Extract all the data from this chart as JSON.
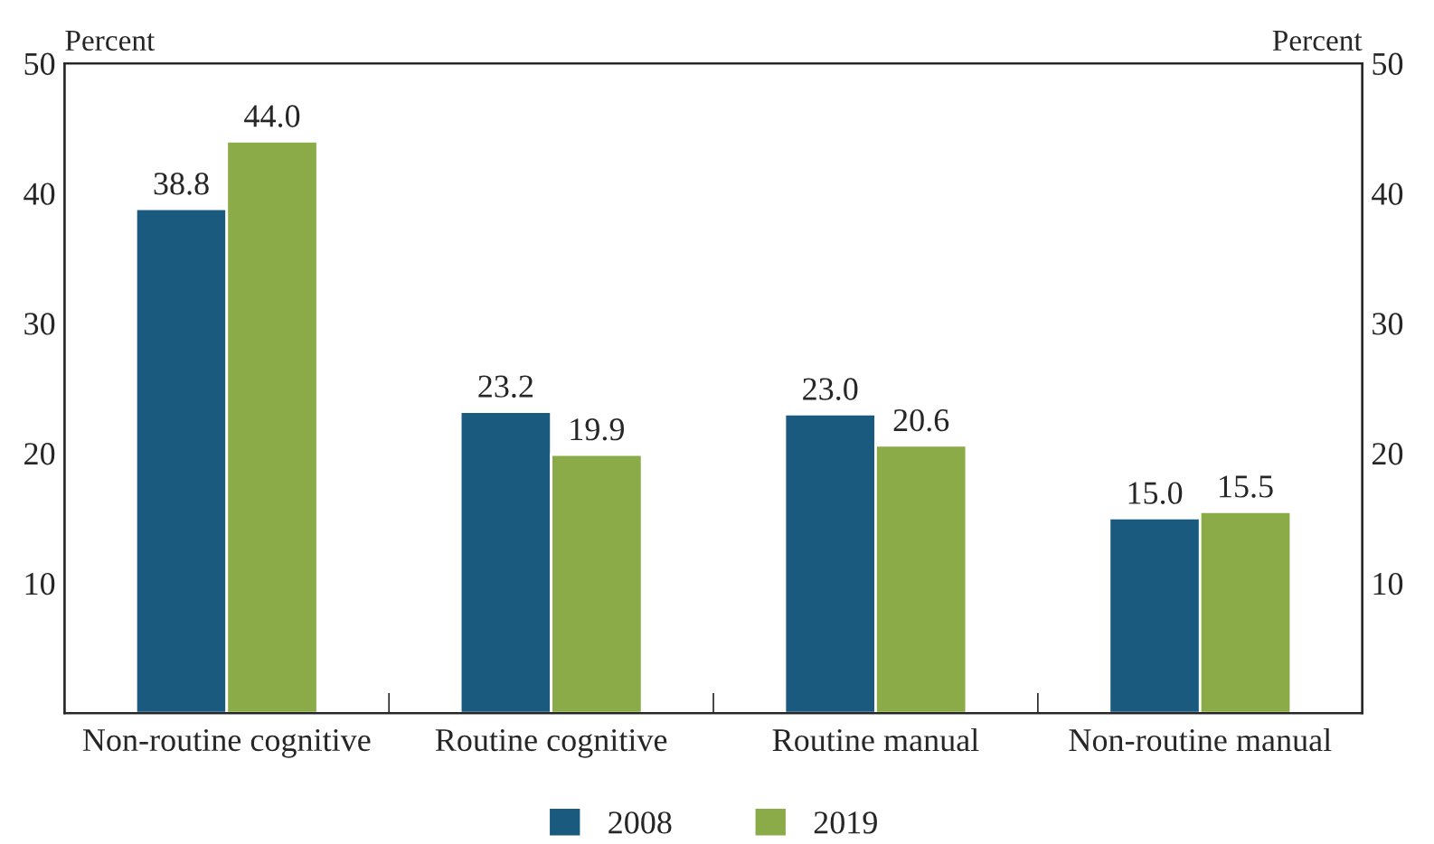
{
  "chart_data": {
    "type": "bar",
    "ylabel": "Percent",
    "y2label": "Percent",
    "categories": [
      "Non-routine cognitive",
      "Routine cognitive",
      "Routine manual",
      "Non-routine manual"
    ],
    "series": [
      {
        "name": "2008",
        "color": "#1a5a7e",
        "values": [
          38.8,
          23.2,
          23.0,
          15.0
        ],
        "value_labels": [
          "38.8",
          "23.2",
          "23.0",
          "15.0"
        ]
      },
      {
        "name": "2019",
        "color": "#8aab47",
        "values": [
          44.0,
          19.9,
          20.6,
          15.5
        ],
        "value_labels": [
          "44.0",
          "19.9",
          "20.6",
          "15.5"
        ]
      }
    ],
    "ylim": [
      0,
      50
    ],
    "yticks": [
      10,
      20,
      30,
      40,
      50
    ],
    "y2lim": [
      0,
      50
    ],
    "y2ticks": [
      10,
      20,
      30,
      40,
      50
    ],
    "legend": "bottom",
    "grid": false
  }
}
